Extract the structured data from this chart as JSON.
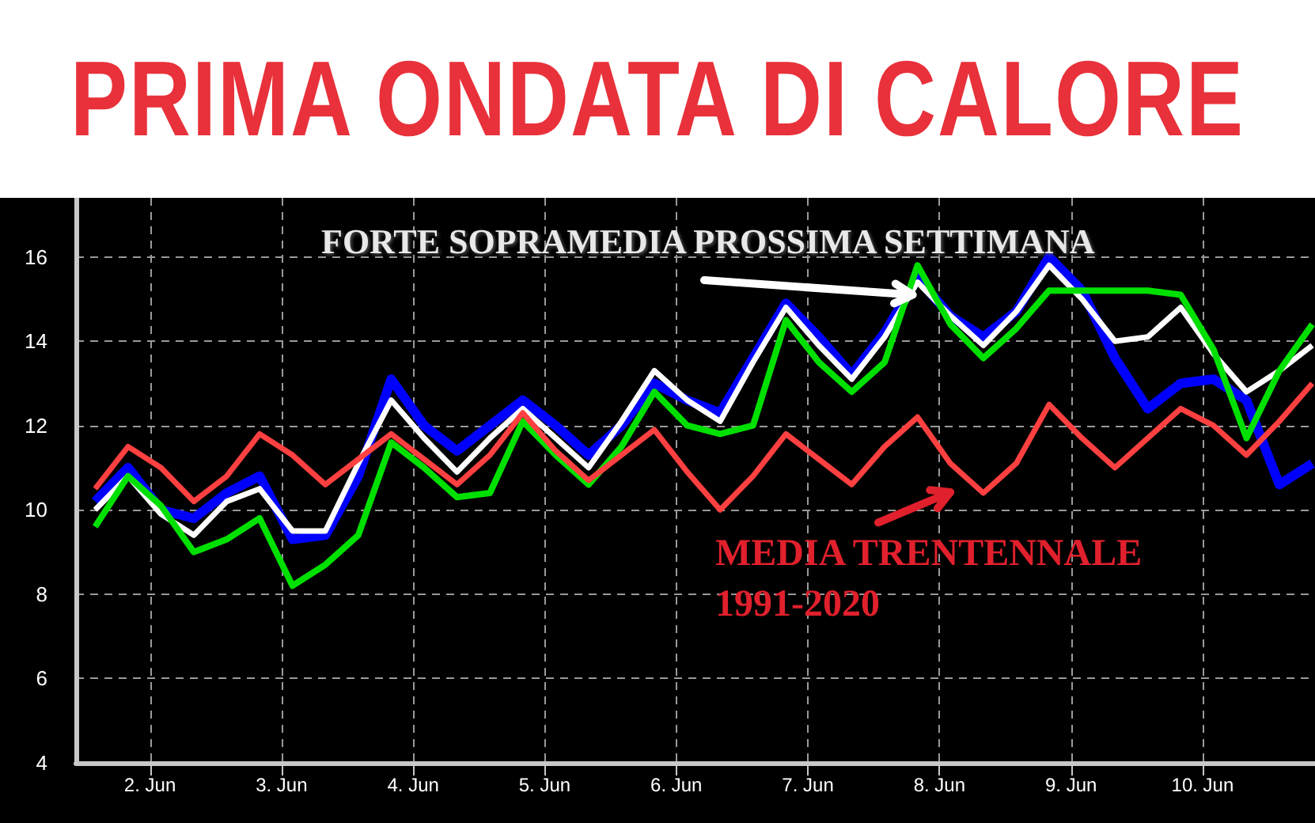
{
  "chart_data": {
    "type": "line",
    "title": "PRIMA ONDATA DI CALORE",
    "annotations": [
      {
        "text": "FORTE SOPRAMEDIA PROSSIMA SETTIMANA",
        "x": "--06-07T20:00",
        "y": 15.4
      },
      {
        "text": "MEDIA TRENTENNALE 1991-2020",
        "x": "--06-08T02:00",
        "y": 11.1
      }
    ],
    "x": [
      "--06-01T14:00",
      "--06-01T20:00",
      "--06-02T02:00",
      "--06-02T08:00",
      "--06-02T14:00",
      "--06-02T20:00",
      "--06-03T02:00",
      "--06-03T08:00",
      "--06-03T14:00",
      "--06-03T20:00",
      "--06-04T02:00",
      "--06-04T08:00",
      "--06-04T14:00",
      "--06-04T20:00",
      "--06-05T02:00",
      "--06-05T08:00",
      "--06-05T14:00",
      "--06-05T20:00",
      "--06-06T02:00",
      "--06-06T08:00",
      "--06-06T14:00",
      "--06-06T20:00",
      "--06-07T02:00",
      "--06-07T08:00",
      "--06-07T14:00",
      "--06-07T20:00",
      "--06-08T02:00",
      "--06-08T08:00",
      "--06-08T14:00",
      "--06-08T20:00",
      "--06-09T02:00",
      "--06-09T08:00",
      "--06-09T14:00",
      "--06-09T20:00",
      "--06-10T02:00",
      "--06-10T08:00",
      "--06-10T14:00",
      "--06-10T20:00"
    ],
    "series": [
      {
        "color": "#0000ff",
        "values": [
          10.2,
          11.0,
          10.0,
          9.8,
          10.4,
          10.8,
          9.3,
          9.4,
          10.8,
          13.1,
          12.0,
          11.4,
          12.0,
          12.6,
          12.0,
          11.3,
          12.0,
          13.0,
          12.6,
          12.3,
          13.6,
          14.9,
          14.1,
          13.2,
          14.2,
          15.5,
          14.6,
          14.1,
          14.7,
          16.0,
          15.2,
          13.6,
          12.4,
          13.0,
          13.1,
          12.6,
          10.6,
          11.1
        ]
      },
      {
        "color": "#ffffff",
        "values": [
          10.0,
          10.8,
          9.9,
          9.4,
          10.2,
          10.5,
          9.5,
          9.5,
          11.1,
          12.6,
          11.7,
          10.9,
          11.7,
          12.4,
          11.7,
          11.0,
          12.1,
          13.3,
          12.6,
          12.1,
          13.5,
          14.8,
          13.9,
          13.1,
          14.1,
          15.4,
          14.6,
          13.9,
          14.7,
          15.8,
          15.0,
          14.0,
          14.1,
          14.8,
          13.7,
          12.8,
          13.3,
          13.9
        ]
      },
      {
        "color": "#00e000",
        "values": [
          9.6,
          10.8,
          10.1,
          9.0,
          9.3,
          9.8,
          8.2,
          8.7,
          9.4,
          11.6,
          11.0,
          10.3,
          10.4,
          12.1,
          11.3,
          10.6,
          11.5,
          12.8,
          12.0,
          11.8,
          12.0,
          14.5,
          13.5,
          12.8,
          13.5,
          15.8,
          14.4,
          13.6,
          14.3,
          15.2,
          15.2,
          15.2,
          15.2,
          15.1,
          13.8,
          11.7,
          13.3,
          14.4
        ]
      },
      {
        "color": "#ff4040",
        "values": [
          10.5,
          11.5,
          11.0,
          10.2,
          10.8,
          11.8,
          11.3,
          10.6,
          11.2,
          11.8,
          11.2,
          10.6,
          11.3,
          12.3,
          11.4,
          10.7,
          11.3,
          11.9,
          10.9,
          10.0,
          10.8,
          11.8,
          11.2,
          10.6,
          11.5,
          12.2,
          11.1,
          10.4,
          11.1,
          12.5,
          11.7,
          11.0,
          11.7,
          12.4,
          12.0,
          11.3,
          12.1,
          13.0
        ]
      }
    ],
    "xlim": [
      "--06-01T10:30",
      "--06-10T20:30"
    ],
    "xticks": [
      {
        "value": "--06-02",
        "label": "2. Jun"
      },
      {
        "value": "--06-03",
        "label": "3. Jun"
      },
      {
        "value": "--06-04",
        "label": "4. Jun"
      },
      {
        "value": "--06-05",
        "label": "5. Jun"
      },
      {
        "value": "--06-06",
        "label": "6. Jun"
      },
      {
        "value": "--06-07",
        "label": "7. Jun"
      },
      {
        "value": "--06-08",
        "label": "8. Jun"
      },
      {
        "value": "--06-09",
        "label": "9. Jun"
      },
      {
        "value": "--06-10",
        "label": "10. Jun"
      }
    ],
    "ylim": [
      4,
      17.4
    ],
    "yticks": [
      4,
      6,
      8,
      10,
      12,
      14,
      16
    ],
    "grid": true,
    "marker": "none",
    "line_style": "solid"
  }
}
